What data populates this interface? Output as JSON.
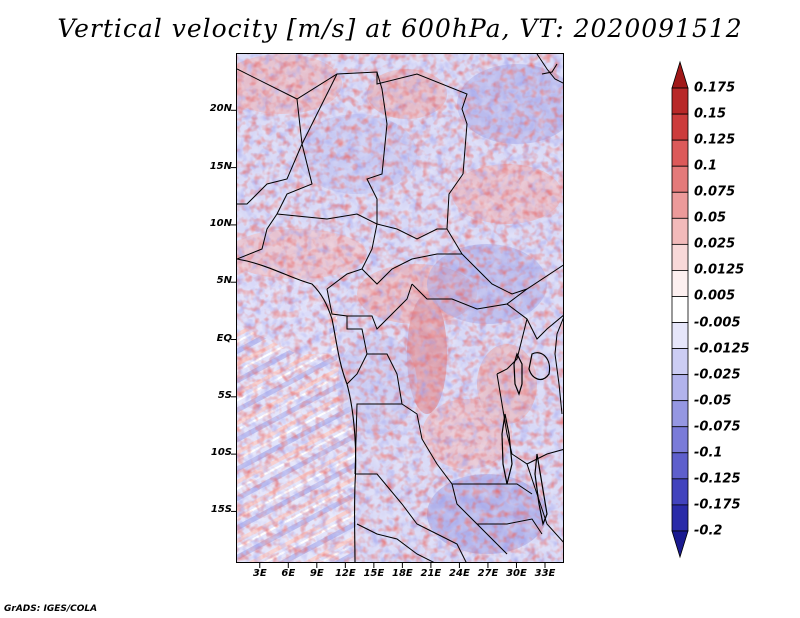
{
  "title": "Vertical velocity [m/s] at 600hPa, VT: 2020091512",
  "footer": "GrADS: IGES/COLA",
  "map": {
    "lat_labels": [
      "20N",
      "15N",
      "10N",
      "5N",
      "EQ",
      "5S",
      "10S",
      "15S"
    ],
    "lon_labels": [
      "3E",
      "6E",
      "9E",
      "12E",
      "15E",
      "18E",
      "21E",
      "24E",
      "27E",
      "30E",
      "33E"
    ],
    "lat_values": [
      20,
      15,
      10,
      5,
      0,
      -5,
      -10,
      -15
    ],
    "lon_values": [
      3,
      6,
      9,
      12,
      15,
      18,
      21,
      24,
      27,
      30,
      33
    ],
    "lon_range": [
      0.5,
      35
    ],
    "lat_range": [
      -19.5,
      25
    ]
  },
  "colorbar": {
    "labels": [
      "0.175",
      "0.15",
      "0.125",
      "0.1",
      "0.075",
      "0.05",
      "0.025",
      "0.0125",
      "0.005",
      "-0.005",
      "-0.0125",
      "-0.025",
      "-0.05",
      "-0.075",
      "-0.1",
      "-0.125",
      "-0.175",
      "-0.2"
    ],
    "colors": [
      "#a01818",
      "#b82828",
      "#cc3c3c",
      "#dc5a5a",
      "#e47a7a",
      "#ec9a9a",
      "#f2baba",
      "#f8d8d8",
      "#fdf0f0",
      "#ffffff",
      "#e6e6fa",
      "#cccdf3",
      "#b2b3ec",
      "#9597e2",
      "#7a7bd8",
      "#5e5fcc",
      "#4243bd",
      "#2a2ba8",
      "#1a1a90"
    ]
  },
  "chart_data": {
    "type": "heatmap",
    "title": "Vertical velocity [m/s] at 600hPa, VT: 2020091512",
    "variable": "Vertical velocity",
    "units": "m/s",
    "level": "600hPa",
    "valid_time": "2020091512",
    "x_ticks": [
      "3E",
      "6E",
      "9E",
      "12E",
      "15E",
      "18E",
      "21E",
      "24E",
      "27E",
      "30E",
      "33E"
    ],
    "y_ticks": [
      "20N",
      "15N",
      "10N",
      "5N",
      "EQ",
      "5S",
      "10S",
      "15S"
    ],
    "contour_levels": [
      -0.2,
      -0.175,
      -0.125,
      -0.1,
      -0.075,
      -0.05,
      -0.025,
      -0.0125,
      -0.005,
      0.005,
      0.0125,
      0.025,
      0.05,
      0.075,
      0.1,
      0.125,
      0.15,
      0.175
    ]
  }
}
